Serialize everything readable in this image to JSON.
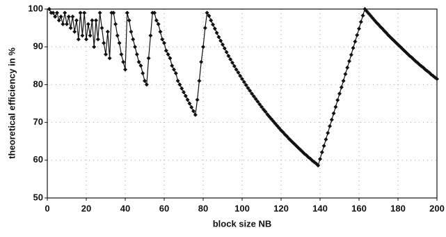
{
  "chart_data": {
    "type": "line",
    "color": "#111111",
    "grid": true,
    "xlabel": "block size NB",
    "ylabel": "theoretical efficiency in %",
    "xlim": [
      0,
      200
    ],
    "ylim": [
      50,
      100
    ],
    "xticks": [
      0,
      20,
      40,
      60,
      80,
      100,
      120,
      140,
      160,
      180,
      200
    ],
    "yticks": [
      50,
      60,
      70,
      80,
      90,
      100
    ],
    "x": [
      1,
      2,
      3,
      4,
      5,
      6,
      7,
      8,
      9,
      10,
      11,
      12,
      13,
      14,
      15,
      16,
      17,
      18,
      19,
      20,
      21,
      22,
      23,
      24,
      25,
      26,
      27,
      28,
      29,
      30,
      31,
      32,
      33,
      34,
      35,
      36,
      37,
      38,
      39,
      40,
      41,
      42,
      43,
      44,
      45,
      46,
      47,
      48,
      49,
      50,
      51,
      52,
      53,
      54,
      55,
      56,
      57,
      58,
      59,
      60,
      61,
      62,
      63,
      64,
      65,
      66,
      67,
      68,
      69,
      70,
      71,
      72,
      73,
      74,
      75,
      76,
      77,
      78,
      79,
      80,
      81,
      82,
      83,
      84,
      85,
      86,
      87,
      88,
      89,
      90,
      91,
      92,
      93,
      94,
      95,
      96,
      97,
      98,
      99,
      100,
      101,
      102,
      103,
      104,
      105,
      106,
      107,
      108,
      109,
      110,
      111,
      112,
      113,
      114,
      115,
      116,
      117,
      118,
      119,
      120,
      121,
      122,
      123,
      124,
      125,
      126,
      127,
      128,
      129,
      130,
      131,
      132,
      133,
      134,
      135,
      136,
      137,
      138,
      139,
      140,
      141,
      142,
      143,
      144,
      145,
      146,
      147,
      148,
      149,
      150,
      151,
      152,
      153,
      154,
      155,
      156,
      157,
      158,
      159,
      160,
      161,
      162,
      163,
      164,
      165,
      166,
      167,
      168,
      169,
      170,
      171,
      172,
      173,
      174,
      175,
      176,
      177,
      178,
      179,
      180,
      181,
      182,
      183,
      184,
      185,
      186,
      187,
      188,
      189,
      190,
      191,
      192,
      193,
      194,
      195,
      196,
      197,
      198,
      199,
      200
    ],
    "values": [
      100,
      99,
      99,
      98,
      99,
      97,
      98,
      96,
      99,
      96,
      98,
      95,
      98,
      94,
      97,
      92,
      99,
      93,
      99,
      92,
      96,
      93,
      97,
      90,
      97,
      92,
      99,
      95,
      91,
      88,
      94,
      87,
      99,
      99,
      96,
      93,
      91,
      88,
      86,
      84,
      99,
      97,
      94,
      92,
      90,
      88,
      86,
      85,
      83,
      81,
      80,
      87,
      93,
      99,
      99,
      97,
      96,
      94,
      92,
      91,
      89,
      88,
      87,
      85,
      84,
      83,
      81,
      80,
      79,
      78,
      77,
      76,
      75,
      74,
      73,
      72,
      76,
      81,
      86,
      90,
      95,
      99,
      98.2,
      97.0,
      95.9,
      94.8,
      93.7,
      92.6,
      91.6,
      90.6,
      89.6,
      88.6,
      87.6,
      86.7,
      85.8,
      84.9,
      84.0,
      83.2,
      82.3,
      81.5,
      80.7,
      79.9,
      79.1,
      78.4,
      77.6,
      76.9,
      76.2,
      75.5,
      74.8,
      74.1,
      73.4,
      72.8,
      72.1,
      71.5,
      70.9,
      70.3,
      69.7,
      69.1,
      68.5,
      67.9,
      67.4,
      66.8,
      66.3,
      65.7,
      65.2,
      64.7,
      64.2,
      63.7,
      63.2,
      62.7,
      62.2,
      61.7,
      61.3,
      60.8,
      60.4,
      59.9,
      59.5,
      59.1,
      58.6,
      60.3,
      62.1,
      63.8,
      65.5,
      67.2,
      69.0,
      70.7,
      72.4,
      74.1,
      75.9,
      77.6,
      79.3,
      81.0,
      82.8,
      84.5,
      86.2,
      87.9,
      89.7,
      91.4,
      93.1,
      94.8,
      96.6,
      98.3,
      100,
      99.4,
      98.8,
      98.2,
      97.6,
      97.0,
      96.4,
      95.9,
      95.3,
      94.8,
      94.2,
      93.7,
      93.1,
      92.6,
      92.1,
      91.6,
      91.1,
      90.6,
      90.1,
      89.6,
      89.1,
      88.6,
      88.1,
      87.6,
      87.2,
      86.7,
      86.2,
      85.8,
      85.3,
      84.9,
      84.5,
      84.0,
      83.6,
      83.2,
      82.7,
      82.3,
      81.9,
      81.5
    ]
  }
}
